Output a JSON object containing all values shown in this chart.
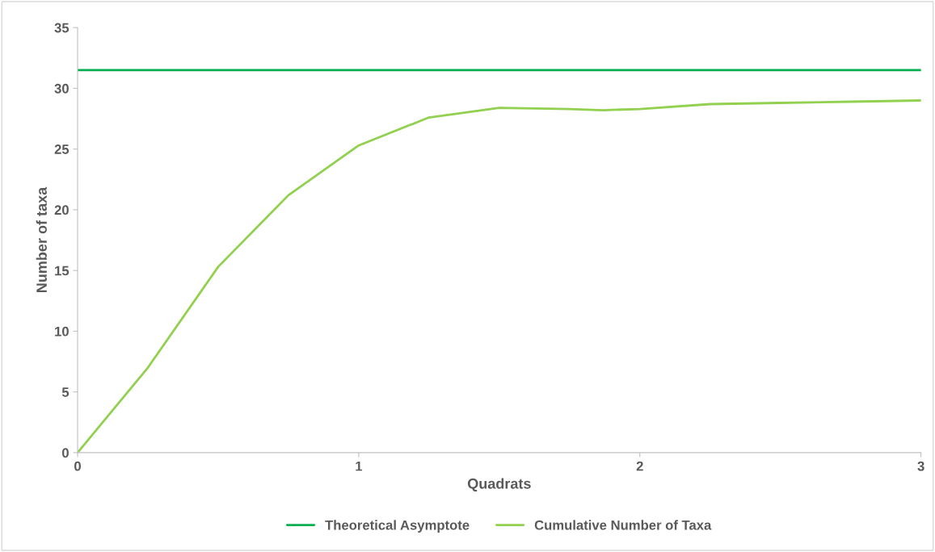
{
  "chart_data": {
    "type": "line",
    "xlabel": "Quadrats",
    "ylabel": "Number of taxa",
    "xlim": [
      0,
      3
    ],
    "xticks": [
      0,
      1,
      2,
      3
    ],
    "ylim": [
      0,
      35
    ],
    "yticks": [
      0,
      5,
      10,
      15,
      20,
      25,
      30,
      35
    ],
    "grid": false,
    "legend": "bottom",
    "marker": "none",
    "line_style": "solid",
    "series": [
      {
        "name": "Theoretical Asymptote",
        "color": "#00b050",
        "x": [
          0,
          3
        ],
        "values": [
          31.5,
          31.5
        ]
      },
      {
        "name": "Cumulative Number of Taxa",
        "color": "#92d050",
        "x": [
          0,
          0.25,
          0.5,
          0.75,
          1,
          1.25,
          1.5,
          1.75,
          1.87,
          2,
          2.25,
          2.5,
          2.75,
          3
        ],
        "values": [
          0,
          7.0,
          15.3,
          21.2,
          25.3,
          27.6,
          28.4,
          28.3,
          28.2,
          28.3,
          28.7,
          28.8,
          28.9,
          29.0
        ]
      }
    ]
  }
}
